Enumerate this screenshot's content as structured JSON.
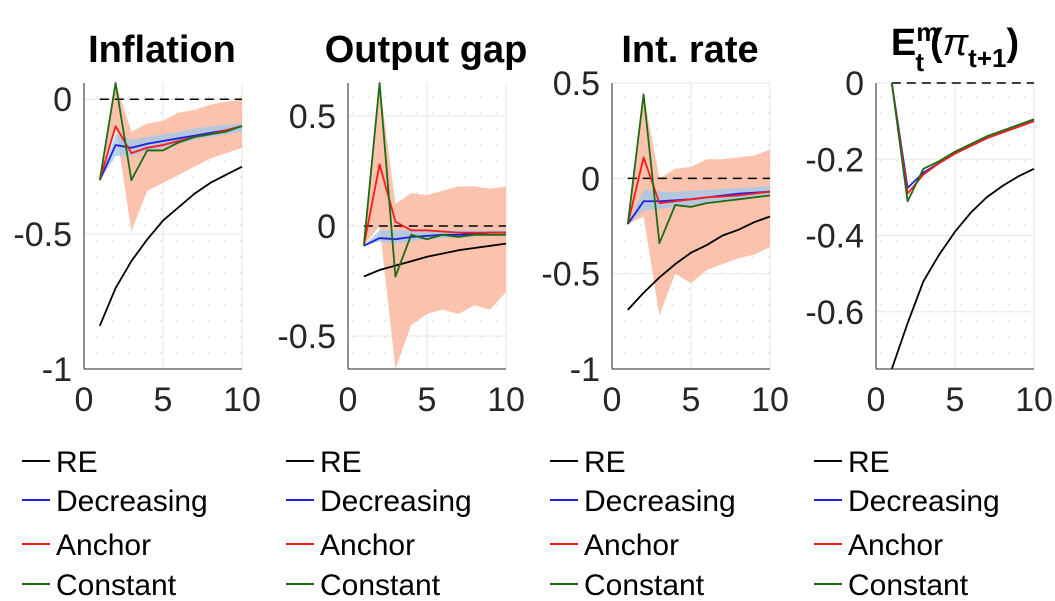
{
  "colors": {
    "RE": "#000000",
    "Decreasing": "#1f1fdc",
    "Anchor": "#ff1a1a",
    "Constant": "#1e6b12",
    "band_constant": "#f9a98c",
    "band_decreasing": "#9cc8ec",
    "zero_line": "#000000"
  },
  "legend": [
    "RE",
    "Decreasing",
    "Anchor",
    "Constant"
  ],
  "chart_data": [
    {
      "type": "line",
      "title": "Inflation",
      "x": [
        1,
        2,
        3,
        4,
        5,
        6,
        7,
        8,
        9,
        10
      ],
      "xlim": [
        0,
        10
      ],
      "ylim": [
        -1,
        0.06
      ],
      "xticks": [
        "0",
        "5",
        "10"
      ],
      "yticks": [
        "-1",
        "-0.5",
        "0"
      ],
      "xtick_values": [
        0,
        5,
        10
      ],
      "ytick_values": [
        -1,
        -0.5,
        0
      ],
      "grid": true,
      "zero_line": true,
      "series": [
        {
          "name": "RE",
          "values": [
            -0.84,
            -0.7,
            -0.6,
            -0.52,
            -0.45,
            -0.4,
            -0.35,
            -0.31,
            -0.28,
            -0.25
          ]
        },
        {
          "name": "Decreasing",
          "values": [
            -0.3,
            -0.17,
            -0.18,
            -0.165,
            -0.155,
            -0.145,
            -0.135,
            -0.125,
            -0.115,
            -0.1
          ]
        },
        {
          "name": "Anchor",
          "values": [
            -0.3,
            -0.1,
            -0.2,
            -0.18,
            -0.17,
            -0.155,
            -0.14,
            -0.13,
            -0.115,
            -0.1
          ]
        },
        {
          "name": "Constant",
          "values": [
            -0.3,
            0.06,
            -0.3,
            -0.19,
            -0.19,
            -0.16,
            -0.14,
            -0.13,
            -0.12,
            -0.1
          ]
        }
      ],
      "bands": [
        {
          "name": "Constant",
          "lower": [
            -0.3,
            -0.1,
            -0.49,
            -0.34,
            -0.31,
            -0.28,
            -0.25,
            -0.22,
            -0.2,
            -0.18
          ],
          "upper": [
            -0.3,
            0.06,
            -0.12,
            -0.09,
            -0.08,
            -0.05,
            -0.04,
            -0.02,
            -0.01,
            0.0
          ]
        },
        {
          "name": "Decreasing",
          "lower": [
            -0.3,
            -0.21,
            -0.21,
            -0.19,
            -0.18,
            -0.165,
            -0.15,
            -0.14,
            -0.13,
            -0.12
          ],
          "upper": [
            -0.3,
            -0.13,
            -0.15,
            -0.14,
            -0.13,
            -0.12,
            -0.11,
            -0.1,
            -0.095,
            -0.09
          ]
        }
      ]
    },
    {
      "type": "line",
      "title": "Output gap",
      "x": [
        1,
        2,
        3,
        4,
        5,
        6,
        7,
        8,
        9,
        10
      ],
      "xlim": [
        0,
        10
      ],
      "ylim": [
        -0.65,
        0.65
      ],
      "xticks": [
        "0",
        "5",
        "10"
      ],
      "yticks": [
        "-0.5",
        "0",
        "0.5"
      ],
      "xtick_values": [
        0,
        5,
        10
      ],
      "ytick_values": [
        -0.5,
        0,
        0.5
      ],
      "grid": true,
      "zero_line": true,
      "series": [
        {
          "name": "RE",
          "values": [
            -0.23,
            -0.2,
            -0.18,
            -0.16,
            -0.14,
            -0.125,
            -0.11,
            -0.1,
            -0.09,
            -0.08
          ]
        },
        {
          "name": "Decreasing",
          "values": [
            -0.09,
            -0.055,
            -0.06,
            -0.05,
            -0.045,
            -0.04,
            -0.04,
            -0.035,
            -0.03,
            -0.03
          ]
        },
        {
          "name": "Anchor",
          "values": [
            -0.09,
            0.28,
            0.02,
            -0.02,
            -0.02,
            -0.025,
            -0.03,
            -0.03,
            -0.03,
            -0.03
          ]
        },
        {
          "name": "Constant",
          "values": [
            -0.09,
            0.65,
            -0.23,
            -0.04,
            -0.06,
            -0.04,
            -0.05,
            -0.04,
            -0.04,
            -0.04
          ]
        }
      ],
      "bands": [
        {
          "name": "Constant",
          "lower": [
            -0.09,
            0.0,
            -0.65,
            -0.45,
            -0.4,
            -0.38,
            -0.4,
            -0.36,
            -0.38,
            -0.3
          ],
          "upper": [
            -0.09,
            0.65,
            0.1,
            0.15,
            0.14,
            0.16,
            0.18,
            0.18,
            0.17,
            0.18
          ]
        },
        {
          "name": "Decreasing",
          "lower": [
            -0.09,
            -0.07,
            -0.08,
            -0.07,
            -0.06,
            -0.055,
            -0.05,
            -0.045,
            -0.04,
            -0.04
          ],
          "upper": [
            -0.09,
            -0.02,
            -0.02,
            -0.02,
            -0.02,
            -0.02,
            -0.02,
            -0.02,
            -0.02,
            -0.02
          ]
        }
      ]
    },
    {
      "type": "line",
      "title": "Int. rate",
      "x": [
        1,
        2,
        3,
        4,
        5,
        6,
        7,
        8,
        9,
        10
      ],
      "xlim": [
        0,
        10
      ],
      "ylim": [
        -1,
        0.5
      ],
      "xticks": [
        "0",
        "5",
        "10"
      ],
      "yticks": [
        "-1",
        "-0.5",
        "0",
        "0.5"
      ],
      "xtick_values": [
        0,
        5,
        10
      ],
      "ytick_values": [
        -1,
        -0.5,
        0,
        0.5
      ],
      "grid": true,
      "zero_line": true,
      "series": [
        {
          "name": "RE",
          "values": [
            -0.69,
            -0.6,
            -0.52,
            -0.45,
            -0.39,
            -0.35,
            -0.3,
            -0.27,
            -0.23,
            -0.2
          ]
        },
        {
          "name": "Decreasing",
          "values": [
            -0.24,
            -0.12,
            -0.12,
            -0.115,
            -0.11,
            -0.1,
            -0.09,
            -0.08,
            -0.075,
            -0.07
          ]
        },
        {
          "name": "Anchor",
          "values": [
            -0.24,
            0.11,
            -0.13,
            -0.12,
            -0.11,
            -0.1,
            -0.095,
            -0.09,
            -0.08,
            -0.07
          ]
        },
        {
          "name": "Constant",
          "values": [
            -0.24,
            0.44,
            -0.34,
            -0.14,
            -0.15,
            -0.13,
            -0.12,
            -0.11,
            -0.1,
            -0.09
          ]
        }
      ],
      "bands": [
        {
          "name": "Constant",
          "lower": [
            -0.24,
            -0.2,
            -0.72,
            -0.5,
            -0.55,
            -0.48,
            -0.45,
            -0.42,
            -0.4,
            -0.36
          ],
          "upper": [
            -0.24,
            0.44,
            0.0,
            0.05,
            0.06,
            0.1,
            0.1,
            0.11,
            0.12,
            0.15
          ]
        },
        {
          "name": "Decreasing",
          "lower": [
            -0.24,
            -0.17,
            -0.16,
            -0.15,
            -0.14,
            -0.13,
            -0.12,
            -0.11,
            -0.1,
            -0.095
          ],
          "upper": [
            -0.24,
            -0.06,
            -0.07,
            -0.07,
            -0.065,
            -0.06,
            -0.055,
            -0.05,
            -0.045,
            -0.04
          ]
        }
      ]
    },
    {
      "type": "line",
      "title": "E<sub>t</sub><sup>m</sup>(π<sub>t+1</sub>)",
      "title_parts": {
        "main": "E",
        "sup": "m",
        "sub": "t",
        "paren_open": "(",
        "pi": "π",
        "pi_sub": "t+1",
        "paren_close": ")"
      },
      "x": [
        1,
        2,
        3,
        4,
        5,
        6,
        7,
        8,
        9,
        10
      ],
      "xlim": [
        0,
        10
      ],
      "ylim": [
        -0.75,
        0.0
      ],
      "xticks": [
        "0",
        "5",
        "10"
      ],
      "yticks": [
        "-0.6",
        "-0.4",
        "-0.2",
        "0"
      ],
      "xtick_values": [
        0,
        5,
        10
      ],
      "ytick_values": [
        -0.6,
        -0.4,
        -0.2,
        0
      ],
      "grid": true,
      "zero_line": true,
      "series": [
        {
          "name": "RE",
          "values": [
            -0.75,
            -0.63,
            -0.52,
            -0.45,
            -0.39,
            -0.34,
            -0.3,
            -0.27,
            -0.245,
            -0.225
          ]
        },
        {
          "name": "Decreasing",
          "values": [
            0.0,
            -0.275,
            -0.235,
            -0.21,
            -0.185,
            -0.165,
            -0.145,
            -0.13,
            -0.115,
            -0.1
          ]
        },
        {
          "name": "Anchor",
          "values": [
            0.0,
            -0.29,
            -0.24,
            -0.21,
            -0.185,
            -0.165,
            -0.145,
            -0.13,
            -0.115,
            -0.1
          ]
        },
        {
          "name": "Constant",
          "values": [
            0.0,
            -0.31,
            -0.225,
            -0.205,
            -0.18,
            -0.16,
            -0.14,
            -0.125,
            -0.11,
            -0.095
          ]
        }
      ],
      "bands": []
    }
  ]
}
